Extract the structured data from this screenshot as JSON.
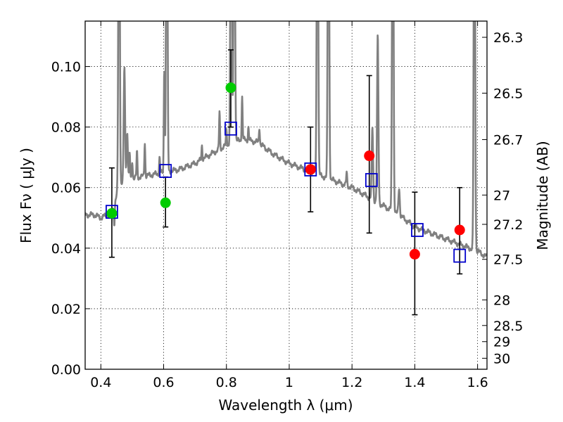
{
  "chart_data": {
    "type": "scatter",
    "xlabel": "Wavelength  λ (μm)",
    "ylabel": "Flux  Fν  ( μJy )",
    "y2label": "Magnitude (AB)",
    "xlim": [
      0.35,
      1.63
    ],
    "ylim": [
      0.0,
      0.115
    ],
    "grid": true,
    "x_ticks": [
      {
        "value": 0.4,
        "label": "0.4"
      },
      {
        "value": 0.6,
        "label": "0.6"
      },
      {
        "value": 0.8,
        "label": "0.8"
      },
      {
        "value": 1.0,
        "label": "1"
      },
      {
        "value": 1.2,
        "label": "1.2"
      },
      {
        "value": 1.4,
        "label": "1.4"
      },
      {
        "value": 1.6,
        "label": "1.6"
      }
    ],
    "y_ticks": [
      {
        "value": 0.0,
        "label": "0.00"
      },
      {
        "value": 0.02,
        "label": "0.02"
      },
      {
        "value": 0.04,
        "label": "0.04"
      },
      {
        "value": 0.06,
        "label": "0.06"
      },
      {
        "value": 0.08,
        "label": "0.08"
      },
      {
        "value": 0.1,
        "label": "0.10"
      }
    ],
    "y2_ticks": [
      {
        "value": 26.3,
        "label": "26.3"
      },
      {
        "value": 26.5,
        "label": "26.5"
      },
      {
        "value": 26.7,
        "label": "26.7"
      },
      {
        "value": 27.0,
        "label": "27"
      },
      {
        "value": 27.2,
        "label": "27.2"
      },
      {
        "value": 27.5,
        "label": "27.5"
      },
      {
        "value": 28.0,
        "label": "28"
      },
      {
        "value": 28.5,
        "label": "28.5"
      },
      {
        "value": 29.0,
        "label": "29"
      },
      {
        "value": 30.0,
        "label": "30"
      }
    ],
    "spectrum": {
      "color": "#808080",
      "continuum": [
        [
          0.35,
          0.051
        ],
        [
          0.38,
          0.051
        ],
        [
          0.4,
          0.05
        ],
        [
          0.42,
          0.051
        ],
        [
          0.435,
          0.052
        ],
        [
          0.45,
          0.057
        ],
        [
          0.47,
          0.062
        ],
        [
          0.5,
          0.063
        ],
        [
          0.55,
          0.064
        ],
        [
          0.6,
          0.065
        ],
        [
          0.65,
          0.066
        ],
        [
          0.7,
          0.068
        ],
        [
          0.75,
          0.071
        ],
        [
          0.8,
          0.074
        ],
        [
          0.85,
          0.076
        ],
        [
          0.9,
          0.075
        ],
        [
          0.95,
          0.071
        ],
        [
          1.0,
          0.068
        ],
        [
          1.05,
          0.066
        ],
        [
          1.1,
          0.064
        ],
        [
          1.15,
          0.062
        ],
        [
          1.2,
          0.06
        ],
        [
          1.25,
          0.057
        ],
        [
          1.3,
          0.054
        ],
        [
          1.35,
          0.051
        ],
        [
          1.4,
          0.047
        ],
        [
          1.45,
          0.045
        ],
        [
          1.5,
          0.043
        ],
        [
          1.55,
          0.041
        ],
        [
          1.6,
          0.039
        ],
        [
          1.63,
          0.037
        ]
      ],
      "lines": [
        {
          "x": 0.443,
          "peak": 0.048,
          "w": 0.002
        },
        {
          "x": 0.458,
          "peak": 0.2,
          "w": 0.003
        },
        {
          "x": 0.475,
          "peak": 0.1,
          "w": 0.003
        },
        {
          "x": 0.484,
          "peak": 0.078,
          "w": 0.003
        },
        {
          "x": 0.492,
          "peak": 0.071,
          "w": 0.002
        },
        {
          "x": 0.5,
          "peak": 0.069,
          "w": 0.002
        },
        {
          "x": 0.515,
          "peak": 0.072,
          "w": 0.002
        },
        {
          "x": 0.54,
          "peak": 0.075,
          "w": 0.002
        },
        {
          "x": 0.587,
          "peak": 0.07,
          "w": 0.002
        },
        {
          "x": 0.602,
          "peak": 0.1,
          "w": 0.002
        },
        {
          "x": 0.61,
          "peak": 0.2,
          "w": 0.003
        },
        {
          "x": 0.722,
          "peak": 0.074,
          "w": 0.002
        },
        {
          "x": 0.778,
          "peak": 0.085,
          "w": 0.002
        },
        {
          "x": 0.8,
          "peak": 0.079,
          "w": 0.002
        },
        {
          "x": 0.815,
          "peak": 0.2,
          "w": 0.003
        },
        {
          "x": 0.825,
          "peak": 0.2,
          "w": 0.003
        },
        {
          "x": 0.85,
          "peak": 0.09,
          "w": 0.002
        },
        {
          "x": 0.87,
          "peak": 0.08,
          "w": 0.002
        },
        {
          "x": 0.905,
          "peak": 0.08,
          "w": 0.002
        },
        {
          "x": 1.09,
          "peak": 0.2,
          "w": 0.003
        },
        {
          "x": 1.125,
          "peak": 0.2,
          "w": 0.003
        },
        {
          "x": 1.183,
          "peak": 0.065,
          "w": 0.002
        },
        {
          "x": 1.265,
          "peak": 0.08,
          "w": 0.003
        },
        {
          "x": 1.282,
          "peak": 0.11,
          "w": 0.003
        },
        {
          "x": 1.33,
          "peak": 0.2,
          "w": 0.003
        },
        {
          "x": 1.35,
          "peak": 0.06,
          "w": 0.003
        },
        {
          "x": 1.59,
          "peak": 0.2,
          "w": 0.003
        }
      ]
    },
    "observed": {
      "colors": [
        "#00cc00",
        "#ff0000"
      ],
      "points": [
        {
          "x": 0.435,
          "y": 0.0515,
          "err_low": 0.037,
          "err_high": 0.0665,
          "color_index": 0
        },
        {
          "x": 0.606,
          "y": 0.055,
          "err_low": 0.047,
          "err_high": 0.0635,
          "color_index": 0
        },
        {
          "x": 0.814,
          "y": 0.093,
          "err_low": 0.08,
          "err_high": 0.1055,
          "color_index": 0
        },
        {
          "x": 1.068,
          "y": 0.066,
          "err_low": 0.052,
          "err_high": 0.08,
          "color_index": 1
        },
        {
          "x": 1.255,
          "y": 0.0705,
          "err_low": 0.045,
          "err_high": 0.097,
          "color_index": 1
        },
        {
          "x": 1.4,
          "y": 0.038,
          "err_low": 0.018,
          "err_high": 0.0585,
          "color_index": 1
        },
        {
          "x": 1.543,
          "y": 0.046,
          "err_low": 0.0315,
          "err_high": 0.06,
          "color_index": 1
        }
      ]
    },
    "model": {
      "color": "#0000cc",
      "points": [
        {
          "x": 0.435,
          "y": 0.052
        },
        {
          "x": 0.606,
          "y": 0.0655
        },
        {
          "x": 0.814,
          "y": 0.0795
        },
        {
          "x": 1.068,
          "y": 0.066
        },
        {
          "x": 1.262,
          "y": 0.0625
        },
        {
          "x": 1.408,
          "y": 0.046
        },
        {
          "x": 1.543,
          "y": 0.0375
        }
      ]
    }
  }
}
